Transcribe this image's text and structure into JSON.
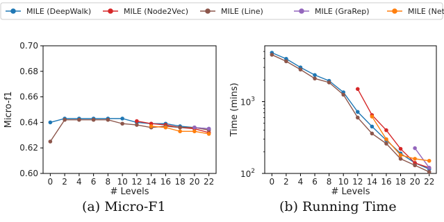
{
  "legend": {
    "entries": [
      {
        "name": "MILE (DeepWalk)",
        "color": "#1f77b4"
      },
      {
        "name": "MILE (Node2Vec)",
        "color": "#d62728"
      },
      {
        "name": "MILE (Line)",
        "color": "#8c564b"
      },
      {
        "name": "MILE (GraRep)",
        "color": "#9467bd"
      },
      {
        "name": "MILE (NetMF)",
        "color": "#ff7f0e"
      }
    ]
  },
  "chart_data": [
    {
      "type": "line",
      "caption": "(a) Micro-F1",
      "xlabel": "# Levels",
      "ylabel": "Micro-f1",
      "xticks": [
        0,
        2,
        4,
        6,
        8,
        10,
        12,
        14,
        16,
        18,
        20,
        22
      ],
      "yticks": [
        "0.60",
        "0.62",
        "0.64",
        "0.66",
        "0.68",
        "0.70"
      ],
      "xlim": [
        -1,
        23
      ],
      "ylim": [
        0.6,
        0.7
      ],
      "yscale": "linear",
      "series": [
        {
          "name": "MILE (DeepWalk)",
          "color": "#1f77b4",
          "x": [
            0,
            2,
            4,
            6,
            8,
            10,
            12,
            14,
            16,
            18,
            20,
            22
          ],
          "y": [
            0.64,
            0.643,
            0.643,
            0.643,
            0.643,
            0.643,
            0.64,
            0.639,
            0.639,
            0.637,
            0.636,
            0.635
          ]
        },
        {
          "name": "MILE (Node2Vec)",
          "color": "#d62728",
          "x": [
            12,
            14,
            16,
            18,
            20,
            22
          ],
          "y": [
            0.641,
            0.639,
            0.638,
            0.636,
            0.635,
            0.632
          ]
        },
        {
          "name": "MILE (Line)",
          "color": "#8c564b",
          "x": [
            0,
            2,
            4,
            6,
            8,
            10,
            12,
            14,
            16,
            18,
            20,
            22
          ],
          "y": [
            0.625,
            0.642,
            0.642,
            0.642,
            0.642,
            0.639,
            0.638,
            0.636,
            0.637,
            0.636,
            0.636,
            0.634
          ]
        },
        {
          "name": "MILE (GraRep)",
          "color": "#9467bd",
          "x": [
            20,
            22
          ],
          "y": [
            0.636,
            0.635
          ]
        },
        {
          "name": "MILE (NetMF)",
          "color": "#ff7f0e",
          "x": [
            14,
            16,
            18,
            20,
            22
          ],
          "y": [
            0.637,
            0.636,
            0.633,
            0.633,
            0.631
          ]
        }
      ]
    },
    {
      "type": "line",
      "caption": "(b) Running Time",
      "xlabel": "# Levels",
      "ylabel": "Time (mins)",
      "xticks": [
        0,
        2,
        4,
        6,
        8,
        10,
        12,
        14,
        16,
        18,
        20,
        22
      ],
      "ytick_labels": [
        {
          "value": 100,
          "label_base": "10",
          "label_exp": "2"
        },
        {
          "value": 1000,
          "label_base": "10",
          "label_exp": "3"
        }
      ],
      "xlim": [
        -1,
        23
      ],
      "ylim": [
        100,
        6000
      ],
      "yscale": "log",
      "series": [
        {
          "name": "MILE (DeepWalk)",
          "color": "#1f77b4",
          "x": [
            0,
            2,
            4,
            6,
            8,
            10,
            12,
            14,
            16,
            18,
            20,
            22
          ],
          "y": [
            4800,
            3950,
            3000,
            2350,
            1950,
            1350,
            720,
            450,
            290,
            190,
            140,
            115
          ]
        },
        {
          "name": "MILE (Node2Vec)",
          "color": "#d62728",
          "x": [
            12,
            14,
            16,
            18,
            20,
            22
          ],
          "y": [
            1500,
            650,
            400,
            220,
            140,
            120
          ]
        },
        {
          "name": "MILE (Line)",
          "color": "#8c564b",
          "x": [
            0,
            2,
            4,
            6,
            8,
            10,
            12,
            14,
            16,
            18,
            20,
            22
          ],
          "y": [
            4500,
            3650,
            2800,
            2100,
            1850,
            1250,
            600,
            360,
            260,
            160,
            130,
            105
          ]
        },
        {
          "name": "MILE (GraRep)",
          "color": "#9467bd",
          "x": [
            20,
            22
          ],
          "y": [
            225,
            120
          ]
        },
        {
          "name": "MILE (NetMF)",
          "color": "#ff7f0e",
          "x": [
            14,
            16,
            18,
            20,
            22
          ],
          "y": [
            620,
            300,
            180,
            160,
            150
          ]
        }
      ]
    }
  ]
}
